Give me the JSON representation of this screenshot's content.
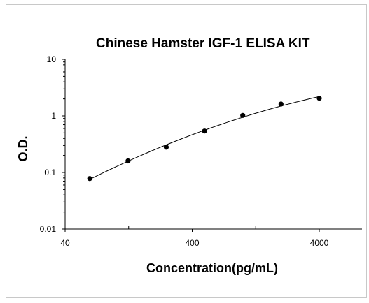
{
  "chart_data": {
    "type": "scatter",
    "title": "Chinese Hamster IGF-1 ELISA KIT",
    "xlabel": "Concentration(pg/mL)",
    "ylabel": "O.D.",
    "x_scale": "log",
    "y_scale": "log",
    "xlim": [
      40,
      8000
    ],
    "ylim": [
      0.01,
      10
    ],
    "x_ticks": [
      40,
      400,
      4000
    ],
    "x_tick_labels": [
      "40",
      "400",
      "4000"
    ],
    "y_ticks": [
      0.01,
      0.1,
      1,
      10
    ],
    "y_tick_labels": [
      "0.01",
      "0.1",
      "1",
      "10"
    ],
    "grid": false,
    "legend": "none",
    "series": [
      {
        "x": [
          62.5,
          125,
          250,
          500,
          1000,
          2000,
          4000
        ],
        "values": [
          0.078,
          0.16,
          0.28,
          0.54,
          1.02,
          1.62,
          2.05
        ],
        "marker_color": "#000000",
        "fit_line": true
      }
    ]
  }
}
